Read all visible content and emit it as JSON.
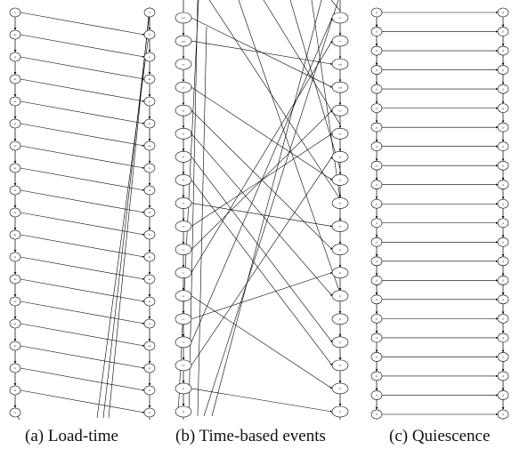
{
  "captions": {
    "a": "(a)  Load-time",
    "b": "(b)  Time-based events",
    "c": "(c)  Quiescence"
  },
  "panels": [
    {
      "id": "a",
      "left_labels": [
        "p",
        "ut",
        "j1",
        "ut",
        "ut",
        "ut",
        "j1",
        "ut",
        "ut",
        "ut",
        "ut",
        "j1",
        "ut",
        "ut",
        "ut",
        "ut",
        "j1",
        "ut",
        "j1"
      ],
      "right_labels": [
        "vc",
        "vc",
        "p",
        "ut",
        "j1",
        "ut",
        "ut",
        "j1",
        "ut",
        "ut",
        "ut",
        "j1",
        "ut",
        "ut",
        "j1",
        "ut",
        "j1",
        "ut",
        "j1"
      ],
      "cross_edges": [
        [
          0,
          1
        ],
        [
          1,
          2
        ],
        [
          2,
          3
        ],
        [
          3,
          4
        ],
        [
          4,
          5
        ],
        [
          5,
          6
        ],
        [
          6,
          7
        ],
        [
          7,
          8
        ],
        [
          8,
          9
        ],
        [
          9,
          10
        ],
        [
          10,
          11
        ],
        [
          11,
          12
        ],
        [
          12,
          13
        ],
        [
          13,
          14
        ],
        [
          14,
          15
        ],
        [
          15,
          16
        ],
        [
          16,
          17
        ],
        [
          17,
          18
        ]
      ]
    },
    {
      "id": "b",
      "left_labels": [
        "nd",
        "nd",
        "vc",
        "j1",
        "j1",
        "j1",
        "j1",
        "j1",
        "j1",
        "vc",
        "vc",
        "vc",
        "j1",
        "vc",
        "vc",
        "vc",
        "j1",
        "j1"
      ],
      "right_labels": [
        "vc",
        "vc",
        "nd",
        "nd",
        "vc",
        "vc",
        "cl",
        "j1",
        "j1",
        "j1",
        "j1",
        "j1",
        "j1",
        "j1",
        "j1",
        "j1",
        "j1",
        "j1"
      ],
      "cross_edges": [
        [
          0,
          3
        ],
        [
          1,
          2
        ],
        [
          3,
          7
        ],
        [
          4,
          10
        ],
        [
          5,
          12
        ],
        [
          6,
          14
        ],
        [
          7,
          15
        ],
        [
          8,
          9
        ],
        [
          9,
          5
        ],
        [
          10,
          4
        ],
        [
          11,
          1
        ],
        [
          12,
          16
        ],
        [
          13,
          11
        ],
        [
          14,
          0
        ],
        [
          15,
          6
        ],
        [
          16,
          17
        ]
      ]
    },
    {
      "id": "c",
      "left_labels": [
        "j1",
        "j1",
        "j1",
        "j1",
        "j1",
        "j1",
        "j1",
        "j1",
        "j1",
        "j1",
        "j1",
        "j1",
        "j1",
        "j1",
        "j1",
        "j1",
        "j1",
        "j1",
        "j1",
        "j1",
        "j1",
        "j1"
      ],
      "right_labels": [
        "j1",
        "j1",
        "j1",
        "j1",
        "j1",
        "j1",
        "j1",
        "j1",
        "j1",
        "j1",
        "j1",
        "j1",
        "j1",
        "j1",
        "j1",
        "j1",
        "j1",
        "j1",
        "j1",
        "j1",
        "j1",
        "j1"
      ],
      "cross_edges": [
        [
          0,
          0
        ],
        [
          1,
          1
        ],
        [
          2,
          2
        ],
        [
          3,
          3
        ],
        [
          4,
          4
        ],
        [
          5,
          5
        ],
        [
          6,
          6
        ],
        [
          7,
          7
        ],
        [
          8,
          8
        ],
        [
          9,
          9
        ],
        [
          10,
          10
        ],
        [
          11,
          11
        ],
        [
          12,
          12
        ],
        [
          13,
          13
        ],
        [
          14,
          14
        ],
        [
          15,
          15
        ],
        [
          16,
          16
        ],
        [
          17,
          17
        ],
        [
          18,
          18
        ],
        [
          19,
          19
        ],
        [
          20,
          20
        ],
        [
          21,
          21
        ]
      ]
    }
  ]
}
